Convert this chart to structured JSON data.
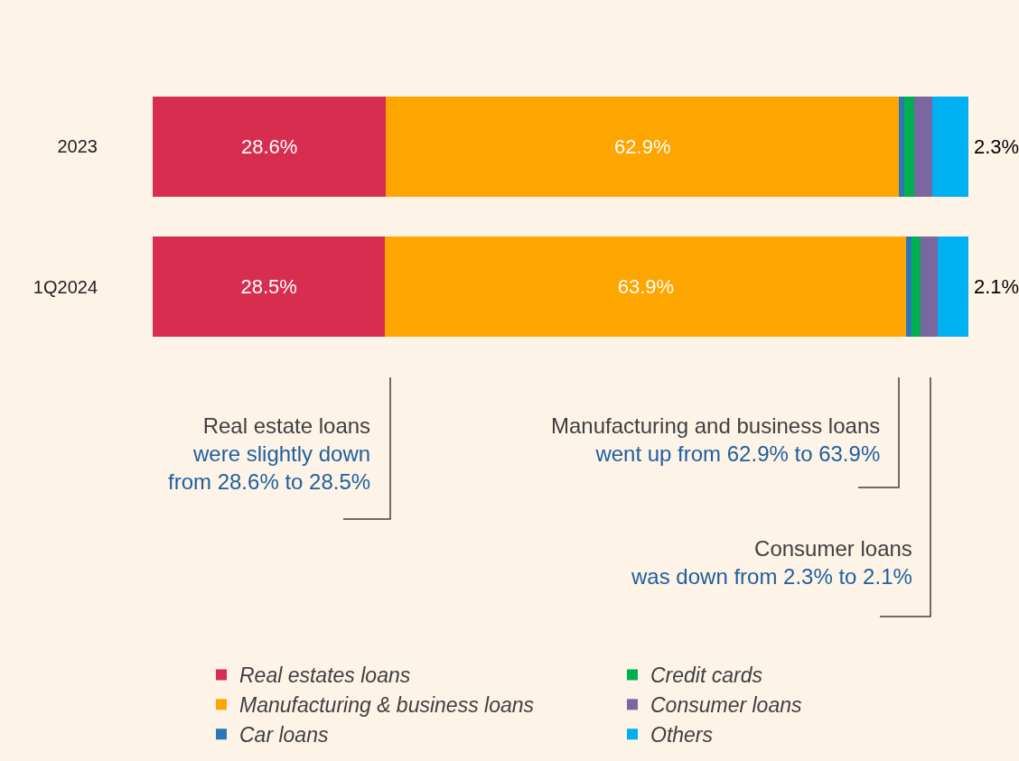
{
  "chart_data": {
    "type": "bar",
    "orientation": "horizontal",
    "stacked": true,
    "categories": [
      "2023",
      "1Q2024"
    ],
    "xlim": [
      0,
      100
    ],
    "tick_labels": "y",
    "legend": "bottom",
    "grid": false,
    "series": [
      {
        "name": "Real estates loans",
        "color": "#d72e50",
        "values": [
          28.6,
          28.5
        ],
        "value_labels": [
          "28.6%",
          "28.5%"
        ]
      },
      {
        "name": "Manufacturing & business loans",
        "color": "#ffa500",
        "values": [
          62.9,
          63.9
        ],
        "value_labels": [
          "62.9%",
          "63.9%"
        ]
      },
      {
        "name": "Car loans",
        "color": "#2e75b6",
        "values": [
          0.6,
          0.6
        ]
      },
      {
        "name": "Credit cards",
        "color": "#00b050",
        "values": [
          1.2,
          1.1
        ]
      },
      {
        "name": "Consumer loans",
        "color": "#7a66a0",
        "values": [
          2.3,
          2.1
        ],
        "value_labels": [
          "2.3%",
          "2.1%"
        ]
      },
      {
        "name": "Others",
        "color": "#00b0f0",
        "values": [
          4.4,
          3.8
        ]
      }
    ],
    "annotations": [
      "Real estate loans\nwere slightly down\nfrom 28.6% to 28.5%",
      "Manufacturing and business loans\nwent up from 62.9% to 63.9%",
      "Consumer loans\nwas down from 2.3% to 2.1%"
    ]
  }
}
